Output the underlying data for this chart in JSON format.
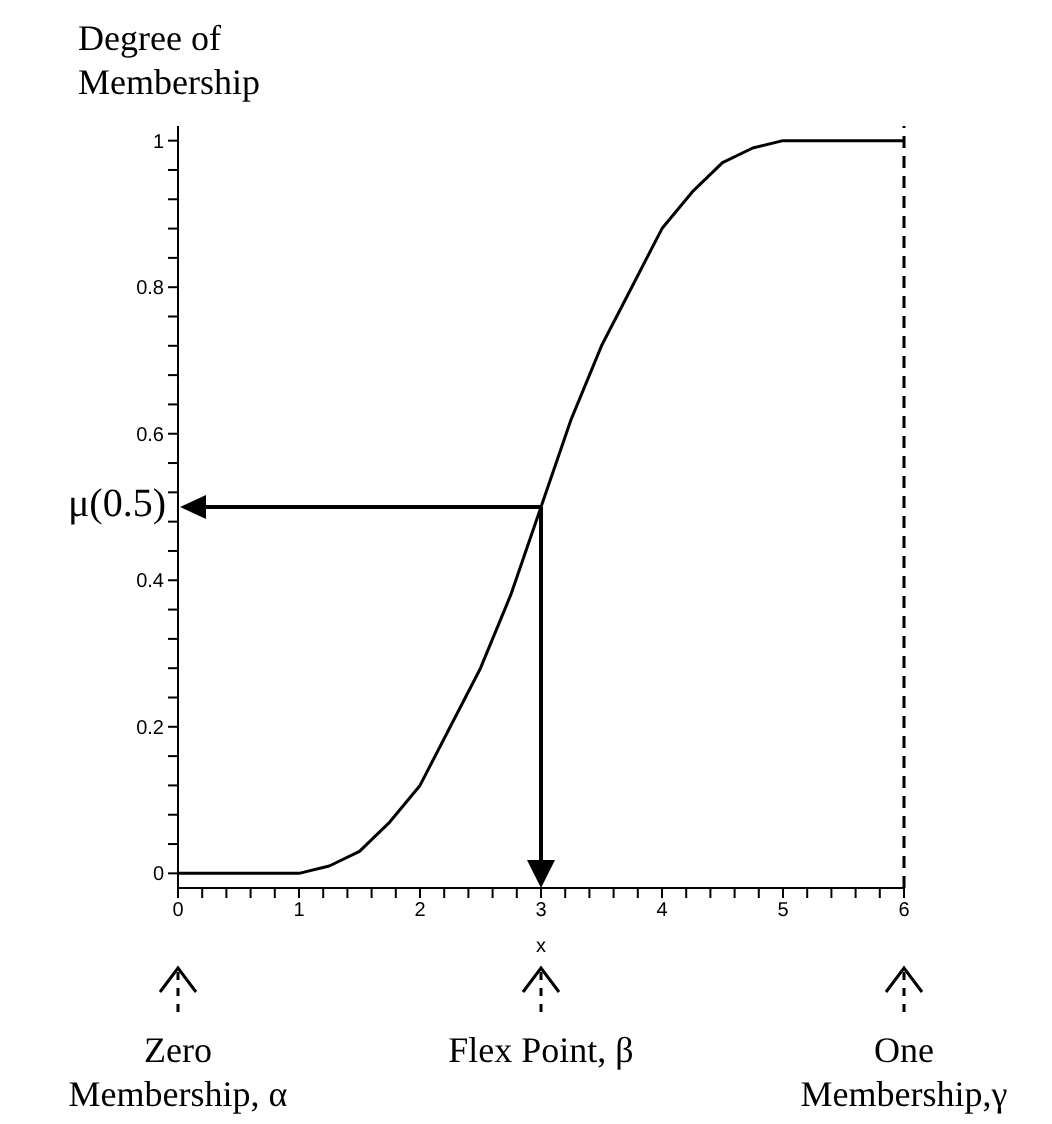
{
  "chart_data": {
    "type": "line",
    "ylabel": "Degree of Membership",
    "xlabel": "x",
    "x": [
      0,
      1,
      1.25,
      1.5,
      1.75,
      2,
      2.25,
      2.5,
      2.75,
      3,
      3.25,
      3.5,
      3.75,
      4,
      4.25,
      4.5,
      4.75,
      5,
      6
    ],
    "series": [
      {
        "color": "#000000",
        "values": [
          0,
          0,
          0.01,
          0.03,
          0.07,
          0.12,
          0.2,
          0.28,
          0.38,
          0.5,
          0.62,
          0.72,
          0.8,
          0.88,
          0.93,
          0.97,
          0.99,
          1,
          1
        ]
      }
    ],
    "xlim": [
      0,
      6
    ],
    "ylim": [
      -0.02,
      1.02
    ],
    "xticks": [
      0,
      {
        "value": 0.2,
        "label": null
      },
      {
        "value": 0.4,
        "label": null
      },
      {
        "value": 0.6,
        "label": null
      },
      {
        "value": 0.8,
        "label": null
      },
      1,
      {
        "value": 1.2,
        "label": null
      },
      {
        "value": 1.4,
        "label": null
      },
      {
        "value": 1.6,
        "label": null
      },
      {
        "value": 1.8,
        "label": null
      },
      2,
      {
        "value": 2.2,
        "label": null
      },
      {
        "value": 2.4,
        "label": null
      },
      {
        "value": 2.6,
        "label": null
      },
      {
        "value": 2.8,
        "label": null
      },
      3,
      {
        "value": 3.2,
        "label": null
      },
      {
        "value": 3.4,
        "label": null
      },
      {
        "value": 3.6,
        "label": null
      },
      {
        "value": 3.8,
        "label": null
      },
      4,
      {
        "value": 4.2,
        "label": null
      },
      {
        "value": 4.4,
        "label": null
      },
      {
        "value": 4.6,
        "label": null
      },
      {
        "value": 4.8,
        "label": null
      },
      5,
      {
        "value": 5.2,
        "label": null
      },
      {
        "value": 5.4,
        "label": null
      },
      {
        "value": 5.6,
        "label": null
      },
      {
        "value": 5.8,
        "label": null
      },
      6
    ],
    "yticks": [
      0,
      {
        "value": 0.04,
        "label": null
      },
      {
        "value": 0.08,
        "label": null
      },
      {
        "value": 0.12,
        "label": null
      },
      {
        "value": 0.16,
        "label": null
      },
      0.2,
      {
        "value": 0.24,
        "label": null
      },
      {
        "value": 0.28,
        "label": null
      },
      {
        "value": 0.32,
        "label": null
      },
      {
        "value": 0.36,
        "label": null
      },
      0.4,
      {
        "value": 0.44,
        "label": null
      },
      {
        "value": 0.48,
        "label": null
      },
      {
        "value": 0.52,
        "label": null
      },
      {
        "value": 0.56,
        "label": null
      },
      0.6,
      {
        "value": 0.64,
        "label": null
      },
      {
        "value": 0.68,
        "label": null
      },
      {
        "value": 0.72,
        "label": null
      },
      {
        "value": 0.76,
        "label": null
      },
      0.8,
      {
        "value": 0.84,
        "label": null
      },
      {
        "value": 0.88,
        "label": null
      },
      {
        "value": 0.92,
        "label": null
      },
      {
        "value": 0.96,
        "label": null
      },
      1
    ],
    "ref_lines": [
      {
        "axis": "x",
        "value": 6,
        "line_style": "dashed",
        "color": "#000000"
      }
    ],
    "annotations": [
      {
        "text": "μ(0.5)",
        "x": 3,
        "y": 0.5
      },
      {
        "text": "Zero Membership, α",
        "x": 0
      },
      {
        "text": "Flex Point, β",
        "x": 3
      },
      {
        "text": "One Membership,γ",
        "x": 6
      }
    ],
    "grid": false,
    "marker": "none",
    "line_style": "solid",
    "legend": false
  }
}
